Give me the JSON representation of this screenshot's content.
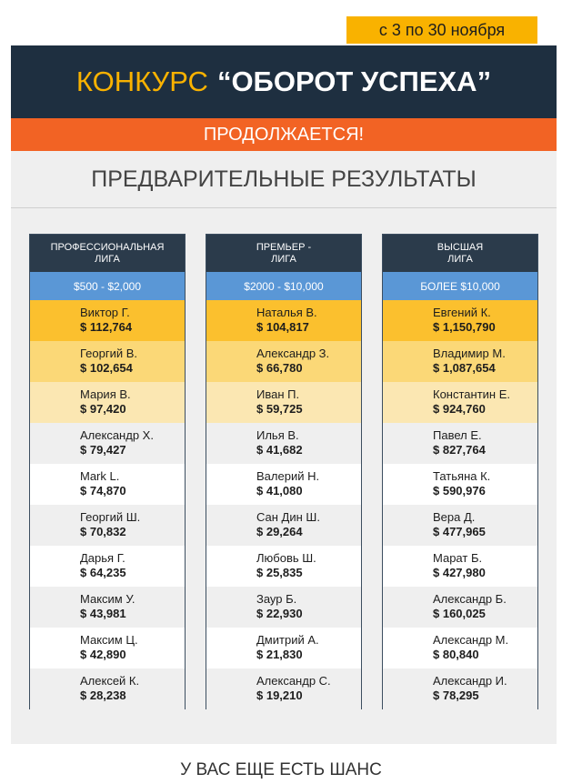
{
  "date_badge": "с 3 по 30 ноября",
  "header": {
    "highlight": "КОНКУРС",
    "title": "“ОБОРОТ УСПЕХА”"
  },
  "sub_banner": "ПРОДОЛЖАЕТСЯ!",
  "panel_title": "ПРЕДВАРИТЕЛЬНЫЕ РЕЗУЛЬТАТЫ",
  "leagues": [
    {
      "title": "ПРОФЕССИОНАЛЬНАЯ\nЛИГА",
      "range": "$500 - $2,000",
      "rows": [
        {
          "name": "Виктор Г.",
          "amount": "$ 112,764"
        },
        {
          "name": "Георгий В.",
          "amount": "$ 102,654"
        },
        {
          "name": "Мария В.",
          "amount": "$ 97,420"
        },
        {
          "name": "Александр Х.",
          "amount": "$ 79,427"
        },
        {
          "name": "Mark L.",
          "amount": "$ 74,870"
        },
        {
          "name": "Георгий Ш.",
          "amount": "$ 70,832"
        },
        {
          "name": "Дарья Г.",
          "amount": "$ 64,235"
        },
        {
          "name": "Максим У.",
          "amount": "$ 43,981"
        },
        {
          "name": "Максим Ц.",
          "amount": "$ 42,890"
        },
        {
          "name": "Алексей К.",
          "amount": "$ 28,238"
        }
      ]
    },
    {
      "title": "ПРЕМЬЕР -\nЛИГА",
      "range": "$2000 - $10,000",
      "rows": [
        {
          "name": "Наталья В.",
          "amount": "$ 104,817"
        },
        {
          "name": "Александр З.",
          "amount": "$ 66,780"
        },
        {
          "name": "Иван П.",
          "amount": "$ 59,725"
        },
        {
          "name": "Илья В.",
          "amount": "$ 41,682"
        },
        {
          "name": "Валерий Н.",
          "amount": "$ 41,080"
        },
        {
          "name": "Сан Дин Ш.",
          "amount": "$ 29,264"
        },
        {
          "name": "Любовь Ш.",
          "amount": "$ 25,835"
        },
        {
          "name": "Заур Б.",
          "amount": "$ 22,930"
        },
        {
          "name": "Дмитрий А.",
          "amount": "$ 21,830"
        },
        {
          "name": "Александр С.",
          "amount": "$ 19,210"
        }
      ]
    },
    {
      "title": "ВЫСШАЯ\nЛИГА",
      "range": "БОЛЕЕ $10,000",
      "rows": [
        {
          "name": "Евгений К.",
          "amount": "$ 1,150,790"
        },
        {
          "name": "Владимир М.",
          "amount": "$ 1,087,654"
        },
        {
          "name": "Константин Е.",
          "amount": "$ 924,760"
        },
        {
          "name": "Павел Е.",
          "amount": "$ 827,764"
        },
        {
          "name": "Татьяна К.",
          "amount": "$ 590,976"
        },
        {
          "name": "Вера Д.",
          "amount": "$ 477,965"
        },
        {
          "name": "Марат Б.",
          "amount": "$ 427,980"
        },
        {
          "name": "Александр Б.",
          "amount": "$ 160,025"
        },
        {
          "name": "Александр М.",
          "amount": "$ 80,840"
        },
        {
          "name": "Александр И.",
          "amount": "$ 78,295"
        }
      ]
    }
  ],
  "footer": "У ВАС ЕЩЕ ЕСТЬ ШАНС"
}
